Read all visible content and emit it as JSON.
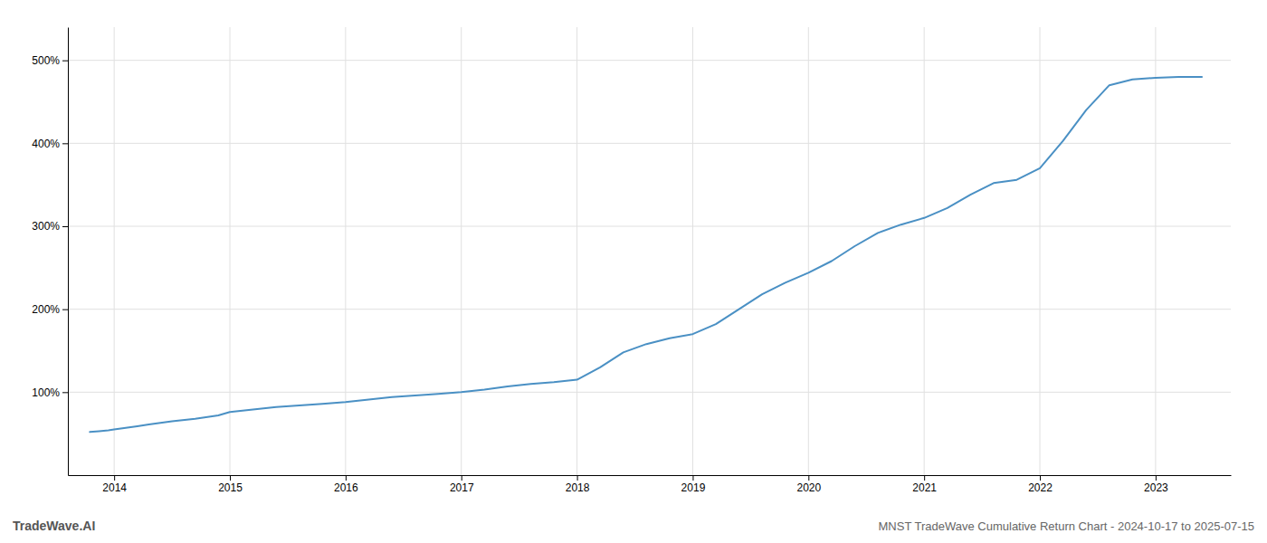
{
  "chart_data": {
    "type": "line",
    "title": "MNST TradeWave Cumulative Return Chart - 2024-10-17 to 2025-07-15",
    "annotations": [
      "TradeWave.AI"
    ],
    "color": "#4a90c4",
    "grid": true,
    "x": [
      2013.79,
      2013.87,
      2013.95,
      2014.0,
      2014.1,
      2014.2,
      2014.3,
      2014.5,
      2014.7,
      2014.9,
      2015.0,
      2015.2,
      2015.4,
      2015.6,
      2015.8,
      2016.0,
      2016.2,
      2016.4,
      2016.6,
      2016.8,
      2017.0,
      2017.2,
      2017.4,
      2017.6,
      2017.8,
      2018.0,
      2018.2,
      2018.4,
      2018.6,
      2018.8,
      2019.0,
      2019.2,
      2019.4,
      2019.6,
      2019.8,
      2020.0,
      2020.2,
      2020.4,
      2020.6,
      2020.8,
      2021.0,
      2021.2,
      2021.4,
      2021.6,
      2021.8,
      2022.0,
      2022.2,
      2022.4,
      2022.6,
      2022.8,
      2023.0,
      2023.2,
      2023.4
    ],
    "values": [
      52,
      53,
      54,
      55,
      57,
      59,
      61,
      65,
      68,
      72,
      76,
      79,
      82,
      84,
      86,
      88,
      91,
      94,
      96,
      98,
      100,
      103,
      107,
      110,
      112,
      115,
      130,
      148,
      158,
      165,
      170,
      182,
      200,
      218,
      232,
      244,
      258,
      276,
      292,
      302,
      310,
      322,
      338,
      352,
      356,
      370,
      403,
      440,
      470,
      477,
      479,
      480,
      480
    ],
    "xlim": [
      2013.6,
      2023.65
    ],
    "xticks": [
      2014,
      2015,
      2016,
      2017,
      2018,
      2019,
      2020,
      2021,
      2022,
      2023
    ],
    "ylim": [
      0,
      540
    ],
    "yticks": [
      {
        "value": 100,
        "label": "100%"
      },
      {
        "value": 200,
        "label": "200%"
      },
      {
        "value": 300,
        "label": "300%"
      },
      {
        "value": 400,
        "label": "400%"
      },
      {
        "value": 500,
        "label": "500%"
      }
    ]
  }
}
